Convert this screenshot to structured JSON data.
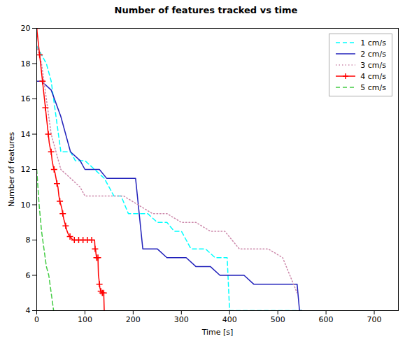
{
  "chart_data": {
    "type": "line",
    "title": "Number of features tracked vs time",
    "xlabel": "Time [s]",
    "ylabel": "Number of features",
    "xlim": [
      0,
      750
    ],
    "ylim": [
      4,
      20
    ],
    "xticks": [
      0,
      100,
      200,
      300,
      400,
      500,
      600,
      700
    ],
    "yticks": [
      4,
      6,
      8,
      10,
      12,
      14,
      16,
      18,
      20
    ],
    "grid": false,
    "legend": "upper right",
    "series": [
      {
        "name": "1 cm/s",
        "color": "cyan",
        "line_style": "dashed",
        "x": [
          0,
          20,
          30,
          50,
          70,
          80,
          100,
          120,
          140,
          160,
          175,
          190,
          210,
          230,
          250,
          270,
          285,
          300,
          320,
          350,
          370,
          395,
          400,
          550
        ],
        "values": [
          19,
          18,
          17,
          13,
          13,
          12.5,
          12.5,
          12,
          11.5,
          10.5,
          10.5,
          9.5,
          9.5,
          9.5,
          9.0,
          9.0,
          8.5,
          8.5,
          7.5,
          7.5,
          7.0,
          7.0,
          4,
          4
        ]
      },
      {
        "name": "2 cm/s",
        "color": "#2222bb",
        "line_style": "solid",
        "x": [
          0,
          10,
          30,
          50,
          70,
          90,
          100,
          130,
          145,
          155,
          160,
          170,
          205,
          220,
          250,
          270,
          290,
          310,
          330,
          360,
          380,
          400,
          430,
          450,
          480,
          540,
          545,
          550
        ],
        "values": [
          17,
          17,
          16.5,
          15,
          13,
          12.5,
          12,
          12,
          11.5,
          11.5,
          11.5,
          11.5,
          11.5,
          7.5,
          7.5,
          7,
          7,
          7,
          6.5,
          6.5,
          6,
          6,
          6,
          5.5,
          5.5,
          5.5,
          4,
          4
        ]
      },
      {
        "name": "3 cm/s",
        "color": "#cc88aa",
        "line_style": "dotted",
        "x": [
          0,
          10,
          30,
          50,
          70,
          90,
          100,
          120,
          150,
          180,
          210,
          240,
          270,
          300,
          330,
          360,
          390,
          420,
          450,
          480,
          510,
          540
        ],
        "values": [
          19,
          18,
          14,
          12,
          11.5,
          11,
          10.5,
          10.5,
          10.5,
          10.5,
          10,
          9.5,
          9.5,
          9.0,
          9.0,
          8.5,
          8.5,
          7.5,
          7.5,
          7.5,
          7.0,
          5
        ]
      },
      {
        "name": "4 cm/s",
        "color": "red",
        "line_style": "solid",
        "marker": "plus",
        "x": [
          0,
          2,
          4,
          6,
          8,
          10,
          12,
          14,
          16,
          18,
          20,
          22,
          24,
          26,
          28,
          30,
          32,
          34,
          36,
          38,
          40,
          42,
          44,
          46,
          48,
          50,
          52,
          54,
          56,
          58,
          60,
          63,
          66,
          69,
          72,
          75,
          78,
          81,
          84,
          87,
          90,
          93,
          96,
          99,
          102,
          105,
          108,
          111,
          114,
          117,
          120,
          121,
          122,
          123,
          124,
          125,
          126,
          127,
          128,
          129,
          130,
          131,
          132,
          133,
          134,
          135,
          136,
          137,
          138,
          139,
          140
        ],
        "values": [
          20,
          19.5,
          19,
          18.5,
          18,
          17.5,
          17,
          16.5,
          16,
          15.5,
          15,
          14.5,
          14,
          13.5,
          13.2,
          13,
          12.5,
          12.2,
          12,
          11.8,
          11.5,
          11.2,
          11,
          10.5,
          10.2,
          10,
          9.8,
          9.5,
          9.2,
          9,
          8.8,
          8.5,
          8.3,
          8.2,
          8.1,
          8,
          8,
          8,
          8,
          8,
          8,
          8,
          8,
          8,
          8,
          8,
          8,
          8,
          8,
          8,
          8,
          7.5,
          7.5,
          7.2,
          7,
          7,
          7,
          7,
          6,
          5.8,
          5.5,
          5.3,
          5.2,
          5.1,
          5,
          5,
          5,
          5,
          5,
          5,
          4
        ]
      },
      {
        "name": "5 cm/s",
        "color": "#44cc44",
        "line_style": "dashed",
        "x": [
          0,
          5,
          10,
          15,
          20,
          25,
          30,
          35
        ],
        "values": [
          12,
          10,
          8.5,
          7.5,
          6.5,
          6,
          5,
          4
        ]
      }
    ]
  }
}
